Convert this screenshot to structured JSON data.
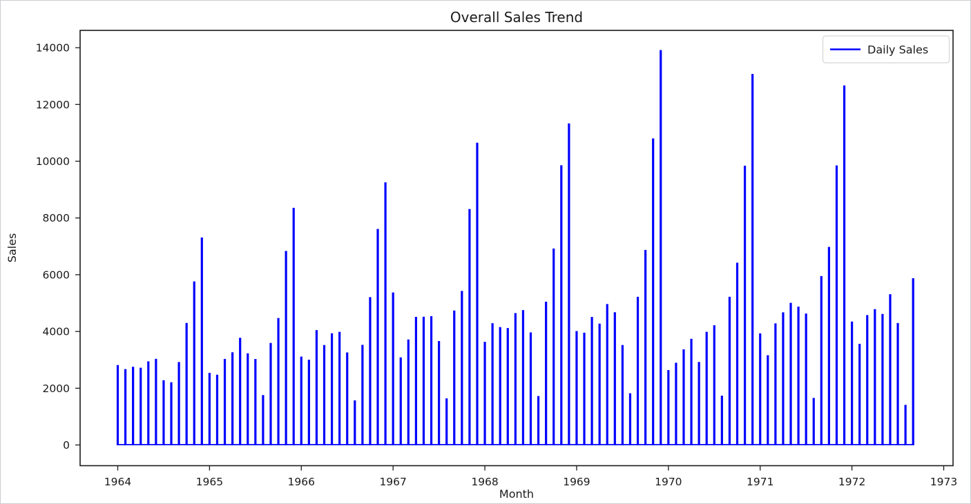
{
  "chart_data": {
    "type": "bar",
    "title": "Overall Sales Trend",
    "xlabel": "Month",
    "ylabel": "Sales",
    "grid": false,
    "background": "#ffffff",
    "bar_color": "#0000ff",
    "legend_position": "upper right",
    "legend": [
      {
        "label": "Daily Sales",
        "color": "#0000ff",
        "marker": "line"
      }
    ],
    "xticks": [
      "1964",
      "1965",
      "1966",
      "1967",
      "1968",
      "1969",
      "1970",
      "1971",
      "1972",
      "1973"
    ],
    "yticks": [
      "0",
      "2000",
      "4000",
      "6000",
      "8000",
      "10000",
      "12000",
      "14000"
    ],
    "xlim_years": [
      1963.57,
      1973.1
    ],
    "ylim": [
      -730,
      14660
    ],
    "x": [
      "1964-01",
      "1964-02",
      "1964-03",
      "1964-04",
      "1964-05",
      "1964-06",
      "1964-07",
      "1964-08",
      "1964-09",
      "1964-10",
      "1964-11",
      "1964-12",
      "1965-01",
      "1965-02",
      "1965-03",
      "1965-04",
      "1965-05",
      "1965-06",
      "1965-07",
      "1965-08",
      "1965-09",
      "1965-10",
      "1965-11",
      "1965-12",
      "1966-01",
      "1966-02",
      "1966-03",
      "1966-04",
      "1966-05",
      "1966-06",
      "1966-07",
      "1966-08",
      "1966-09",
      "1966-10",
      "1966-11",
      "1966-12",
      "1967-01",
      "1967-02",
      "1967-03",
      "1967-04",
      "1967-05",
      "1967-06",
      "1967-07",
      "1967-08",
      "1967-09",
      "1967-10",
      "1967-11",
      "1967-12",
      "1968-01",
      "1968-02",
      "1968-03",
      "1968-04",
      "1968-05",
      "1968-06",
      "1968-07",
      "1968-08",
      "1968-09",
      "1968-10",
      "1968-11",
      "1968-12",
      "1969-01",
      "1969-02",
      "1969-03",
      "1969-04",
      "1969-05",
      "1969-06",
      "1969-07",
      "1969-08",
      "1969-09",
      "1969-10",
      "1969-11",
      "1969-12",
      "1970-01",
      "1970-02",
      "1970-03",
      "1970-04",
      "1970-05",
      "1970-06",
      "1970-07",
      "1970-08",
      "1970-09",
      "1970-10",
      "1970-11",
      "1970-12",
      "1971-01",
      "1971-02",
      "1971-03",
      "1971-04",
      "1971-05",
      "1971-06",
      "1971-07",
      "1971-08",
      "1971-09",
      "1971-10",
      "1971-11",
      "1971-12",
      "1972-01",
      "1972-02",
      "1972-03",
      "1972-04",
      "1972-05",
      "1972-06",
      "1972-07",
      "1972-08",
      "1972-09"
    ],
    "values": [
      2815,
      2672,
      2755,
      2721,
      2946,
      3036,
      2282,
      2212,
      2922,
      4301,
      5764,
      7312,
      2541,
      2475,
      3031,
      3266,
      3776,
      3230,
      3028,
      1759,
      3595,
      4474,
      6838,
      8357,
      3113,
      3006,
      4047,
      3523,
      3937,
      3986,
      3260,
      1573,
      3528,
      5211,
      7614,
      9254,
      5375,
      3088,
      3718,
      4514,
      4520,
      4539,
      3663,
      1643,
      4739,
      5428,
      8314,
      10651,
      3633,
      4292,
      4154,
      4121,
      4647,
      4753,
      3965,
      1723,
      5048,
      6922,
      9858,
      11331,
      4016,
      3957,
      4510,
      4276,
      4968,
      4677,
      3523,
      1821,
      5222,
      6872,
      10803,
      13916,
      2639,
      2899,
      3370,
      3740,
      2927,
      3986,
      4217,
      1738,
      5221,
      6424,
      9842,
      13076,
      3934,
      3162,
      4286,
      4676,
      5010,
      4874,
      4633,
      1659,
      5951,
      6981,
      9851,
      12670,
      4348,
      3564,
      4577,
      4788,
      4618,
      5312,
      4298,
      1413,
      5877
    ]
  }
}
